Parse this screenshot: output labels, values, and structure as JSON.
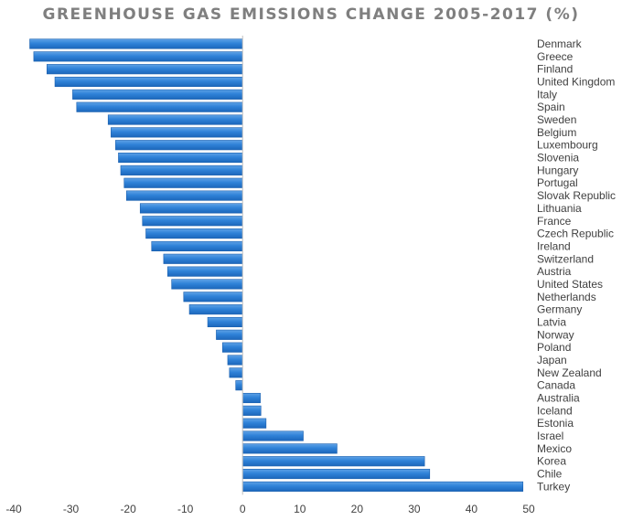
{
  "chart_data": {
    "type": "bar",
    "orientation": "horizontal",
    "title": "GREENHOUSE GAS EMISSIONS CHANGE 2005-2017 (%)",
    "xlabel": "",
    "ylabel": "",
    "xlim": [
      -40,
      50
    ],
    "x_ticks": [
      -40,
      -30,
      -20,
      -10,
      0,
      10,
      20,
      30,
      40,
      50
    ],
    "grid": false,
    "legend": "none",
    "bar_color": "#2e7fd4",
    "categories": [
      "Denmark",
      "Greece",
      "Finland",
      "United Kingdom",
      "Italy",
      "Spain",
      "Sweden",
      "Belgium",
      "Luxembourg",
      "Slovenia",
      "Hungary",
      "Portugal",
      "Slovak Republic",
      "Lithuania",
      "France",
      "Czech Republic",
      "Ireland",
      "Switzerland",
      "Austria",
      "United States",
      "Netherlands",
      "Germany",
      "Latvia",
      "Norway",
      "Poland",
      "Japan",
      "New Zealand",
      "Canada",
      "Australia",
      "Iceland",
      "Estonia",
      "Israel",
      "Mexico",
      "Korea",
      "Chile",
      "Turkey"
    ],
    "values": [
      -37.2,
      -36.5,
      -34.2,
      -32.8,
      -29.7,
      -29.0,
      -23.5,
      -23.0,
      -22.2,
      -21.7,
      -21.3,
      -20.7,
      -20.3,
      -17.9,
      -17.5,
      -16.9,
      -15.9,
      -13.8,
      -13.1,
      -12.4,
      -10.3,
      -9.3,
      -6.1,
      -4.6,
      -3.5,
      -2.6,
      -2.3,
      -1.2,
      3.1,
      3.2,
      4.1,
      10.6,
      16.5,
      31.8,
      32.7,
      49.0
    ]
  }
}
